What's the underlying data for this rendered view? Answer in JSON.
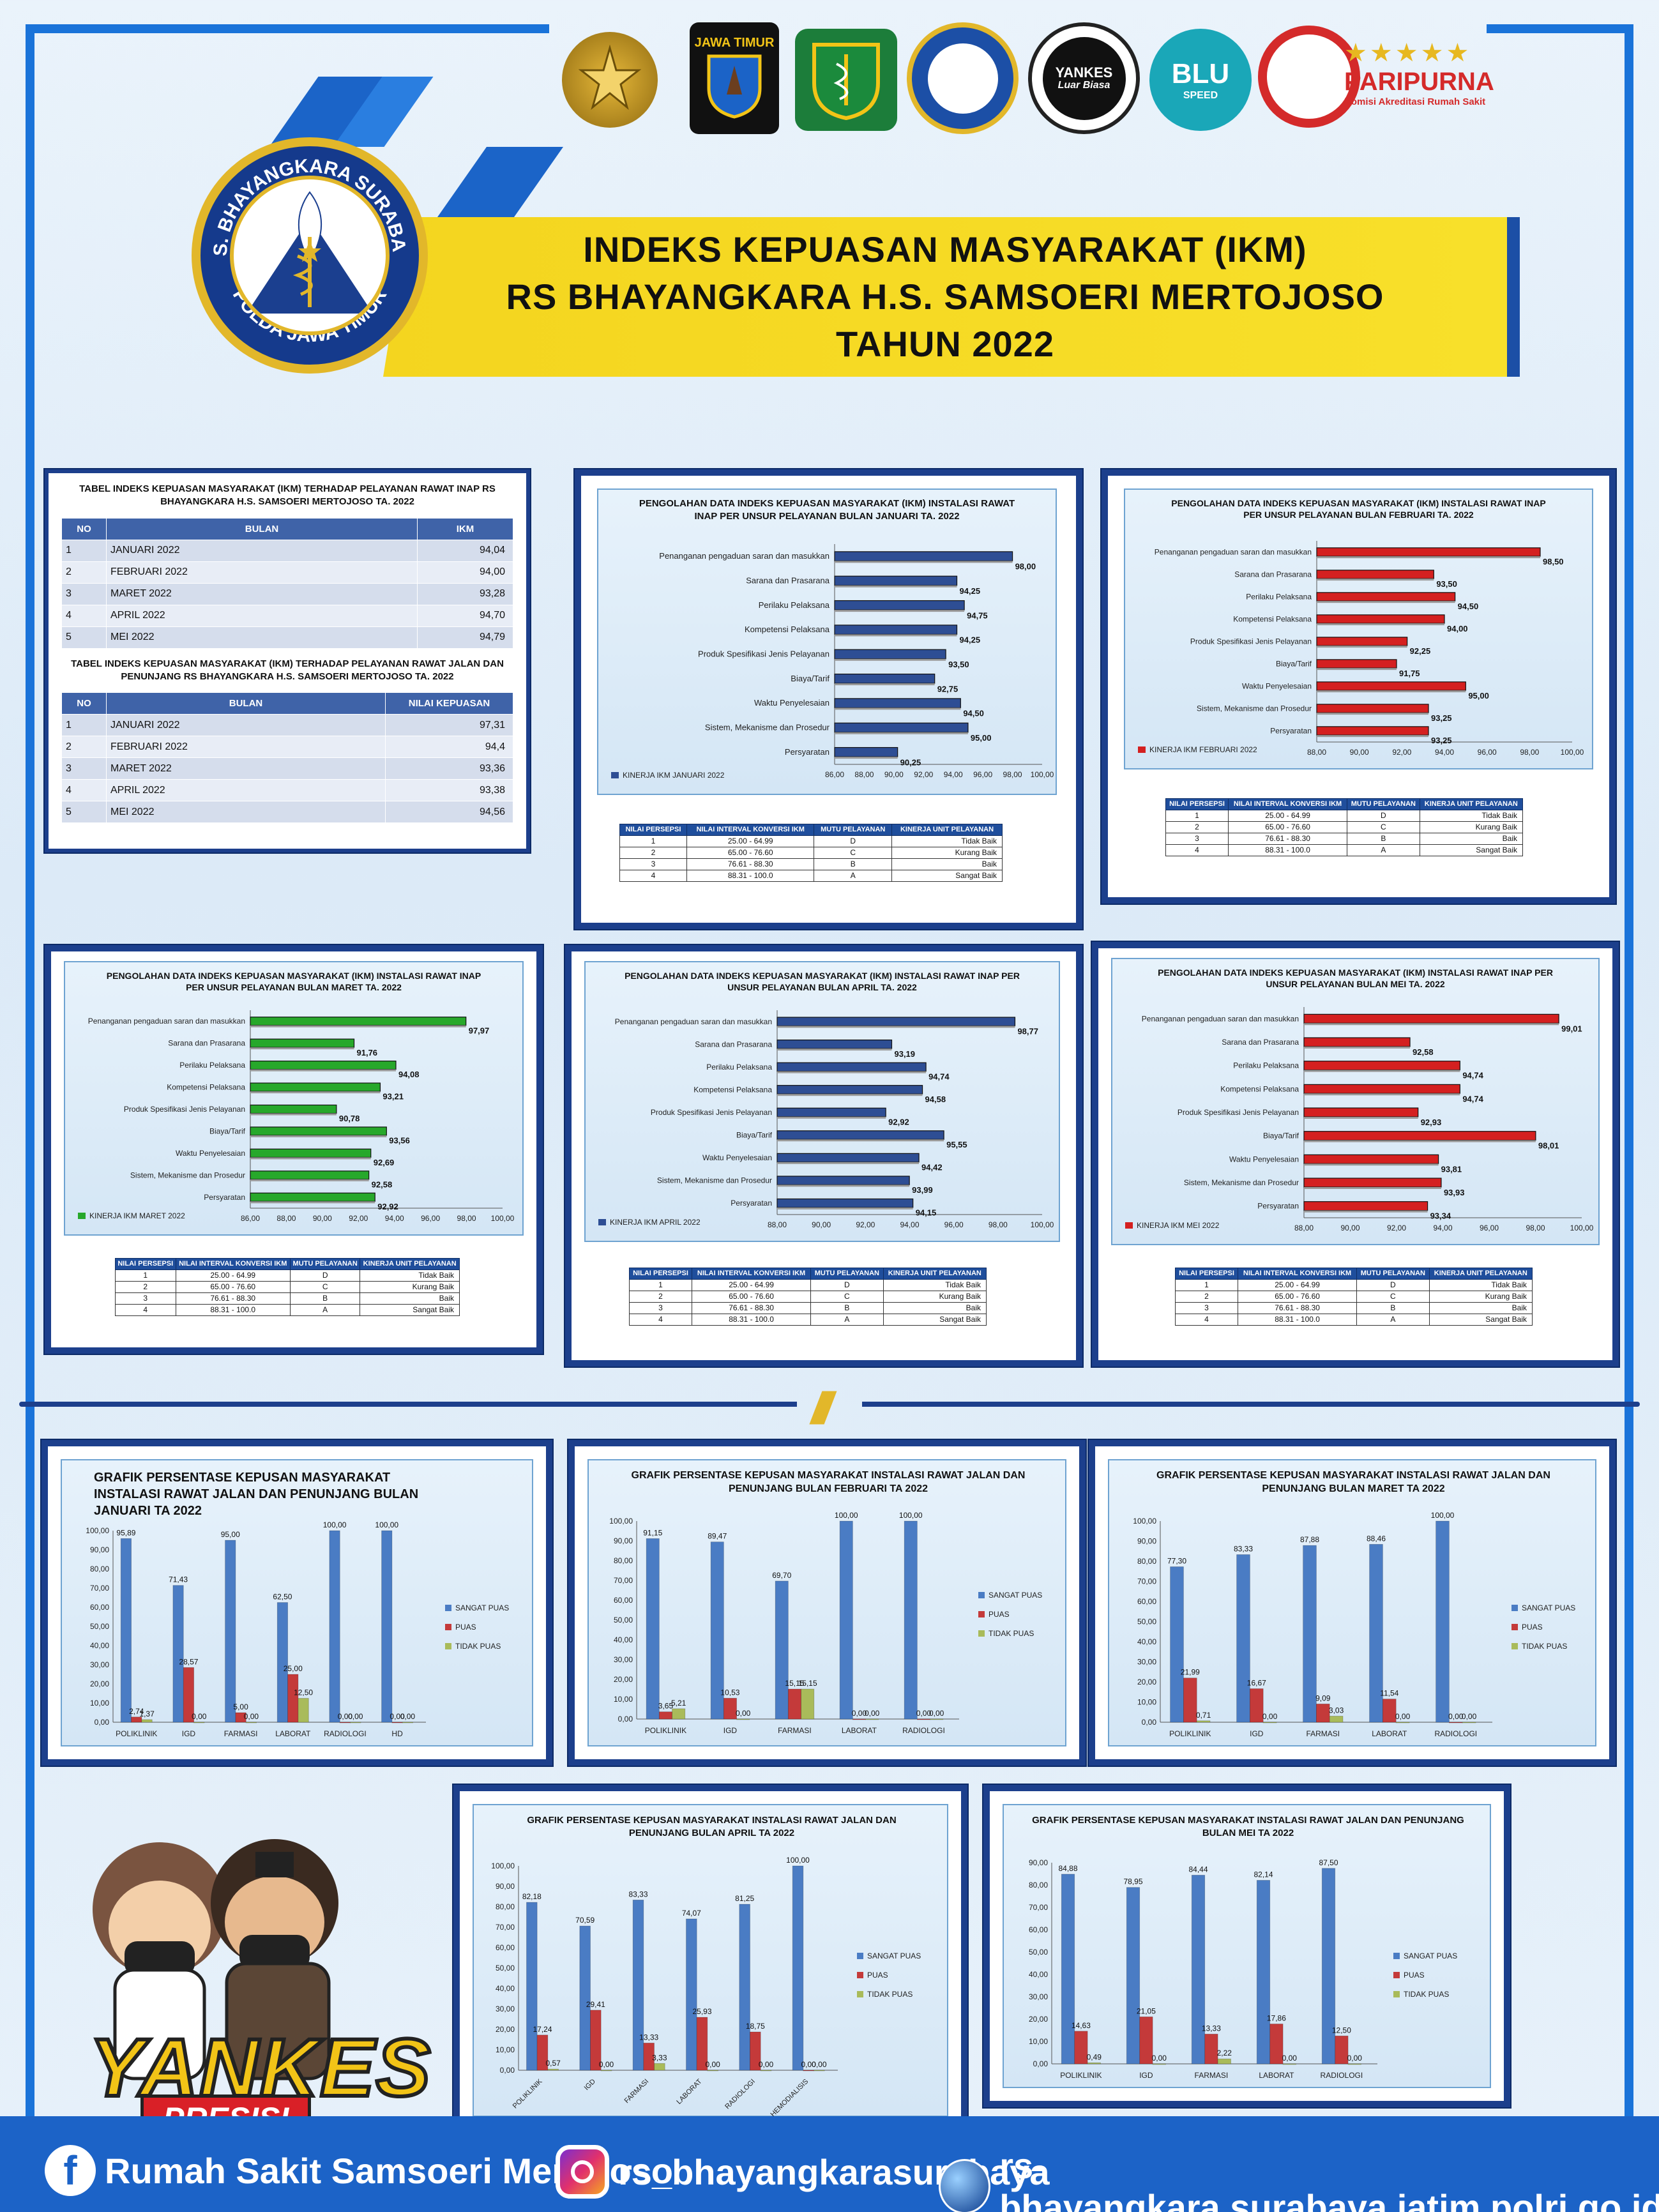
{
  "header": {
    "title_line1": "INDEKS KEPUASAN MASYARAKAT (IKM)",
    "title_line2": "RS BHAYANGKARA H.S. SAMSOERI MERTOJOSO",
    "title_line3": "TAHUN 2022",
    "emblem_top": "R.S. BHAYANGKARA SURABAYA",
    "emblem_bottom": "POLDA JAWA TIMUR",
    "logos": {
      "jatim": "JAWA TIMUR",
      "rs": "POLDA JAWA TIMUR",
      "yankes": "YANKES",
      "yankes_sub": "Luar Biasa",
      "blu": "BLU",
      "blu_sub": "SPEED",
      "paripurna": "PARIPURNA",
      "paripurna_sub": "Komisi Akreditasi Rumah Sakit"
    }
  },
  "colors": {
    "frame": "#1a73d9",
    "banner": "#f4d51f",
    "navy": "#1c3f8c",
    "blue_bar": "#2e4e94",
    "red_bar": "#d42020",
    "green_bar": "#27a82b",
    "sangat_puas": "#4a7cc4",
    "puas": "#c43a3a",
    "tidak_puas": "#a9bb5a"
  },
  "table_panel": {
    "cap1": "TABEL INDEKS  KEPUASAN MASYARAKAT (IKM) TERHADAP PELAYANAN RAWAT INAP RS BHAYANGKARA H.S. SAMSOERI MERTOJOSO TA. 2022",
    "t1_headers": [
      "NO",
      "BULAN",
      "IKM"
    ],
    "t1_rows": [
      [
        "1",
        "JANUARI 2022",
        "94,04"
      ],
      [
        "2",
        "FEBRUARI 2022",
        "94,00"
      ],
      [
        "3",
        "MARET 2022",
        "93,28"
      ],
      [
        "4",
        "APRIL 2022",
        "94,70"
      ],
      [
        "5",
        "MEI 2022",
        "94,79"
      ]
    ],
    "cap2": "TABEL INDEKS  KEPUASAN MASYARAKAT (IKM) TERHADAP PELAYANAN RAWAT JALAN DAN PENUNJANG RS BHAYANGKARA H.S. SAMSOERI MERTOJOSO TA. 2022",
    "t2_headers": [
      "NO",
      "BULAN",
      "NILAI KEPUASAN"
    ],
    "t2_rows": [
      [
        "1",
        "JANUARI 2022",
        "97,31"
      ],
      [
        "2",
        "FEBRUARI 2022",
        "94,4"
      ],
      [
        "3",
        "MARET 2022",
        "93,36"
      ],
      [
        "4",
        "APRIL 2022",
        "93,38"
      ],
      [
        "5",
        "MEI 2022",
        "94,56"
      ]
    ]
  },
  "kinerja_table": {
    "headers": [
      "NILAI PERSEPSI",
      "NILAI INTERVAL KONVERSI IKM",
      "MUTU PELAYANAN",
      "KINERJA UNIT PELAYANAN"
    ],
    "rows": [
      [
        "1",
        "25.00 - 64.99",
        "D",
        "Tidak Baik"
      ],
      [
        "2",
        "65.00 - 76.60",
        "C",
        "Kurang Baik"
      ],
      [
        "3",
        "76.61 - 88.30",
        "B",
        "Baik"
      ],
      [
        "4",
        "88.31 - 100.0",
        "A",
        "Sangat Baik"
      ]
    ]
  },
  "chart_data": [
    {
      "type": "bar",
      "orientation": "horizontal",
      "title": "PENGOLAHAN DATA INDEKS KEPUASAN MASYARAKAT (IKM) INSTALASI RAWAT INAP PER UNSUR PELAYANAN BULAN JANUARI  TA. 2022",
      "categories": [
        "Penanganan pengaduan saran dan masukkan",
        "Sarana dan Prasarana",
        "Perilaku Pelaksana",
        "Kompetensi Pelaksana",
        "Produk Spesifikasi Jenis Pelayanan",
        "Biaya/Tarif",
        "Waktu Penyelesaian",
        "Sistem, Mekanisme dan Prosedur",
        "Persyaratan"
      ],
      "series": [
        {
          "name": "KINERJA IKM JANUARI 2022",
          "values": [
            98.0,
            94.25,
            94.75,
            94.25,
            93.5,
            92.75,
            94.5,
            95.0,
            90.25
          ]
        }
      ],
      "labels": [
        "98,00",
        "94,25",
        "94,75",
        "94,25",
        "93,50",
        "92,75",
        "94,50",
        "95,00",
        "90,25"
      ],
      "xlim": [
        86,
        100
      ],
      "ticks": [
        "86,00",
        "88,00",
        "90,00",
        "92,00",
        "94,00",
        "96,00",
        "98,00",
        "100,00"
      ],
      "color": "#2e4e94"
    },
    {
      "type": "bar",
      "orientation": "horizontal",
      "title": "PENGOLAHAN DATA INDEKS KEPUASAN MASYARAKAT (IKM) INSTALASI RAWAT INAP PER UNSUR PELAYANAN BULAN FEBRUARI TA. 2022",
      "categories": [
        "Penanganan pengaduan saran dan masukkan",
        "Sarana dan Prasarana",
        "Perilaku Pelaksana",
        "Kompetensi Pelaksana",
        "Produk Spesifikasi Jenis Pelayanan",
        "Biaya/Tarif",
        "Waktu Penyelesaian",
        "Sistem, Mekanisme dan Prosedur",
        "Persyaratan"
      ],
      "series": [
        {
          "name": "KINERJA IKM FEBRUARI 2022",
          "values": [
            98.5,
            93.5,
            94.5,
            94.0,
            92.25,
            91.75,
            95.0,
            93.25,
            93.25
          ]
        }
      ],
      "labels": [
        "98,50",
        "93,50",
        "94,50",
        "94,00",
        "92,25",
        "91,75",
        "95,00",
        "93,25",
        "93,25"
      ],
      "xlim": [
        88,
        100
      ],
      "ticks": [
        "88,00",
        "90,00",
        "92,00",
        "94,00",
        "96,00",
        "98,00",
        "100,00"
      ],
      "color": "#d42020"
    },
    {
      "type": "bar",
      "orientation": "horizontal",
      "title": "PENGOLAHAN DATA INDEKS KEPUASAN MASYARAKAT (IKM) INSTALASI RAWAT INAP PER UNSUR PELAYANAN BULAN MARET TA. 2022",
      "categories": [
        "Penanganan pengaduan saran dan masukkan",
        "Sarana dan Prasarana",
        "Perilaku Pelaksana",
        "Kompetensi Pelaksana",
        "Produk Spesifikasi Jenis Pelayanan",
        "Biaya/Tarif",
        "Waktu Penyelesaian",
        "Sistem, Mekanisme dan Prosedur",
        "Persyaratan"
      ],
      "series": [
        {
          "name": "KINERJA IKM MARET 2022",
          "values": [
            97.97,
            91.76,
            94.08,
            93.21,
            90.78,
            93.56,
            92.69,
            92.58,
            92.92
          ]
        }
      ],
      "labels": [
        "97,97",
        "91,76",
        "94,08",
        "93,21",
        "90,78",
        "93,56",
        "92,69",
        "92,58",
        "92,92"
      ],
      "xlim": [
        86,
        100
      ],
      "ticks": [
        "86,00",
        "88,00",
        "90,00",
        "92,00",
        "94,00",
        "96,00",
        "98,00",
        "100,00"
      ],
      "color": "#27a82b"
    },
    {
      "type": "bar",
      "orientation": "horizontal",
      "title": "PENGOLAHAN DATA INDEKS KEPUASAN MASYARAKAT (IKM) INSTALASI RAWAT INAP PER UNSUR PELAYANAN BULAN APRIL TA. 2022",
      "categories": [
        "Penanganan pengaduan saran dan masukkan",
        "Sarana dan Prasarana",
        "Perilaku Pelaksana",
        "Kompetensi Pelaksana",
        "Produk Spesifikasi Jenis Pelayanan",
        "Biaya/Tarif",
        "Waktu Penyelesaian",
        "Sistem, Mekanisme dan Prosedur",
        "Persyaratan"
      ],
      "series": [
        {
          "name": "KINERJA IKM APRIL 2022",
          "values": [
            98.77,
            93.19,
            94.74,
            94.58,
            92.92,
            95.55,
            94.42,
            93.99,
            94.15
          ]
        }
      ],
      "labels": [
        "98,77",
        "93,19",
        "94,74",
        "94,58",
        "92,92",
        "95,55",
        "94,42",
        "93,99",
        "94,15"
      ],
      "xlim": [
        88,
        100
      ],
      "ticks": [
        "88,00",
        "90,00",
        "92,00",
        "94,00",
        "96,00",
        "98,00",
        "100,00"
      ],
      "color": "#2e4e94"
    },
    {
      "type": "bar",
      "orientation": "horizontal",
      "title": "PENGOLAHAN DATA INDEKS KEPUASAN MASYARAKAT (IKM) INSTALASI RAWAT INAP PER UNSUR PELAYANAN BULAN MEI TA. 2022",
      "categories": [
        "Penanganan pengaduan saran dan masukkan",
        "Sarana dan Prasarana",
        "Perilaku Pelaksana",
        "Kompetensi Pelaksana",
        "Produk Spesifikasi Jenis Pelayanan",
        "Biaya/Tarif",
        "Waktu Penyelesaian",
        "Sistem, Mekanisme dan Prosedur",
        "Persyaratan"
      ],
      "series": [
        {
          "name": "KINERJA IKM MEI 2022",
          "values": [
            99.01,
            92.58,
            94.74,
            94.74,
            92.93,
            98.01,
            93.81,
            93.93,
            93.34
          ]
        }
      ],
      "labels": [
        "99,01",
        "92,58",
        "94,74",
        "94,74",
        "92,93",
        "98,01",
        "93,81",
        "93,93",
        "93,34"
      ],
      "xlim": [
        88,
        100
      ],
      "ticks": [
        "88,00",
        "90,00",
        "92,00",
        "94,00",
        "96,00",
        "98,00",
        "100,00"
      ],
      "color": "#d42020"
    },
    {
      "type": "bar",
      "orientation": "vertical",
      "title": "GRAFIK PERSENTASE KEPUSAN MASYARAKAT INSTALASI RAWAT JALAN DAN PENUNJANG BULAN  JANUARI TA 2022",
      "categories": [
        "POLIKLINIK",
        "IGD",
        "FARMASI",
        "LABORAT",
        "RADIOLOGI",
        "HD"
      ],
      "series": [
        {
          "name": "SANGAT PUAS",
          "values": [
            95.89,
            71.43,
            95.0,
            62.5,
            100.0,
            100.0
          ]
        },
        {
          "name": "PUAS",
          "values": [
            2.74,
            28.57,
            5.0,
            25.0,
            0.0,
            0.0
          ]
        },
        {
          "name": "TIDAK PUAS",
          "values": [
            1.37,
            0.0,
            0.0,
            12.5,
            0.0,
            0.0
          ]
        }
      ],
      "labels": [
        [
          "95,89",
          "71,43",
          "95,00",
          "62,50",
          "100,00",
          "100,00"
        ],
        [
          "2,74",
          "28,57",
          "5,00",
          "25,00",
          "0,00",
          "0,00"
        ],
        [
          "1,37",
          "0,00",
          "0,00",
          "12,50",
          "0,00",
          "0,00"
        ]
      ],
      "ylim": [
        0,
        100
      ],
      "ticks": [
        "0,00",
        "10,00",
        "20,00",
        "30,00",
        "40,00",
        "50,00",
        "60,00",
        "70,00",
        "80,00",
        "90,00",
        "100,00"
      ]
    },
    {
      "type": "bar",
      "orientation": "vertical",
      "title": "GRAFIK PERSENTASE KEPUSAN MASYARAKAT INSTALASI RAWAT JALAN DAN PENUNJANG BULAN  FEBRUARI TA 2022",
      "categories": [
        "POLIKLINIK",
        "IGD",
        "FARMASI",
        "LABORAT",
        "RADIOLOGI"
      ],
      "series": [
        {
          "name": "SANGAT PUAS",
          "values": [
            91.15,
            89.47,
            69.7,
            100.0,
            100.0
          ]
        },
        {
          "name": "PUAS",
          "values": [
            3.65,
            10.53,
            15.15,
            0.0,
            0.0
          ]
        },
        {
          "name": "TIDAK PUAS",
          "values": [
            5.21,
            0.0,
            15.15,
            0.0,
            0.0
          ]
        }
      ],
      "labels": [
        [
          "91,15",
          "89,47",
          "69,70",
          "100,00",
          "100,00"
        ],
        [
          "3,65",
          "10,53",
          "15,15",
          "0,00",
          "0,00"
        ],
        [
          "5,21",
          "0,00",
          "15,15",
          "0,00",
          "0,00"
        ]
      ],
      "ylim": [
        0,
        100
      ],
      "ticks": [
        "0,00",
        "10,00",
        "20,00",
        "30,00",
        "40,00",
        "50,00",
        "60,00",
        "70,00",
        "80,00",
        "90,00",
        "100,00"
      ]
    },
    {
      "type": "bar",
      "orientation": "vertical",
      "title": "GRAFIK PERSENTASE KEPUSAN MASYARAKAT INSTALASI RAWAT JALAN DAN PENUNJANG BULAN  MARET TA 2022",
      "categories": [
        "POLIKLINIK",
        "IGD",
        "FARMASI",
        "LABORAT",
        "RADIOLOGI"
      ],
      "series": [
        {
          "name": "SANGAT PUAS",
          "values": [
            77.3,
            83.33,
            87.88,
            88.46,
            100.0
          ]
        },
        {
          "name": "PUAS",
          "values": [
            21.99,
            16.67,
            9.09,
            11.54,
            0.0
          ]
        },
        {
          "name": "TIDAK PUAS",
          "values": [
            0.71,
            0.0,
            3.03,
            0.0,
            0.0
          ]
        }
      ],
      "labels": [
        [
          "77,30",
          "83,33",
          "87,88",
          "88,46",
          "100,00"
        ],
        [
          "21,99",
          "16,67",
          "9,09",
          "11,54",
          "0,00"
        ],
        [
          "0,71",
          "0,00",
          "3,03",
          "0,00",
          "0,00"
        ]
      ],
      "ylim": [
        0,
        100
      ],
      "ticks": [
        "0,00",
        "10,00",
        "20,00",
        "30,00",
        "40,00",
        "50,00",
        "60,00",
        "70,00",
        "80,00",
        "90,00",
        "100,00"
      ]
    },
    {
      "type": "bar",
      "orientation": "vertical",
      "title": "GRAFIK PERSENTASE KEPUSAN MASYARAKAT INSTALASI RAWAT JALAN DAN PENUNJANG BULAN  APRIL TA 2022",
      "categories": [
        "POLIKLINIK",
        "IGD",
        "FARMASI",
        "LABORAT",
        "RADIOLOGI",
        "HEMODIALISIS"
      ],
      "series": [
        {
          "name": "SANGAT PUAS",
          "values": [
            82.18,
            70.59,
            83.33,
            74.07,
            81.25,
            100.0
          ]
        },
        {
          "name": "PUAS",
          "values": [
            17.24,
            29.41,
            13.33,
            25.93,
            18.75,
            0.0
          ]
        },
        {
          "name": "TIDAK PUAS",
          "values": [
            0.57,
            0.0,
            3.33,
            0.0,
            0.0,
            0.0
          ]
        }
      ],
      "labels": [
        [
          "82,18",
          "70,59",
          "83,33",
          "74,07",
          "81,25",
          "100,00"
        ],
        [
          "17,24",
          "29,41",
          "13,33",
          "25,93",
          "18,75",
          "0,00"
        ],
        [
          "0,57",
          "0,00",
          "3,33",
          "0,00",
          "0,00",
          "0,00"
        ]
      ],
      "ylim": [
        0,
        100
      ],
      "ticks": [
        "0,00",
        "10,00",
        "20,00",
        "30,00",
        "40,00",
        "50,00",
        "60,00",
        "70,00",
        "80,00",
        "90,00",
        "100,00"
      ]
    },
    {
      "type": "bar",
      "orientation": "vertical",
      "title": "GRAFIK PERSENTASE KEPUSAN MASYARAKAT INSTALASI RAWAT JALAN DAN PENUNJANG BULAN MEI TA 2022",
      "categories": [
        "POLIKLINIK",
        "IGD",
        "FARMASI",
        "LABORAT",
        "RADIOLOGI"
      ],
      "series": [
        {
          "name": "SANGAT PUAS",
          "values": [
            84.88,
            78.95,
            84.44,
            82.14,
            87.5
          ]
        },
        {
          "name": "PUAS",
          "values": [
            14.63,
            21.05,
            13.33,
            17.86,
            12.5
          ]
        },
        {
          "name": "TIDAK PUAS",
          "values": [
            0.49,
            0.0,
            2.22,
            0.0,
            0.0
          ]
        }
      ],
      "labels": [
        [
          "84,88",
          "78,95",
          "84,44",
          "82,14",
          "87,50"
        ],
        [
          "14,63",
          "21,05",
          "13,33",
          "17,86",
          "12,50"
        ],
        [
          "0,49",
          "0,00",
          "2,22",
          "0,00",
          "0,00"
        ]
      ],
      "ylim": [
        0,
        90
      ],
      "ticks": [
        "0,00",
        "10,00",
        "20,00",
        "30,00",
        "40,00",
        "50,00",
        "60,00",
        "70,00",
        "80,00",
        "90,00"
      ]
    }
  ],
  "mascot": {
    "word": "YANKES",
    "sub": "PRESISI"
  },
  "footer": {
    "facebook": "Rumah Sakit Samsoeri Mertojoso",
    "instagram": "rs_bhayangkarasurabaya",
    "website": "rs-bhayangkara.surabaya.jatim.polri.go.id"
  }
}
